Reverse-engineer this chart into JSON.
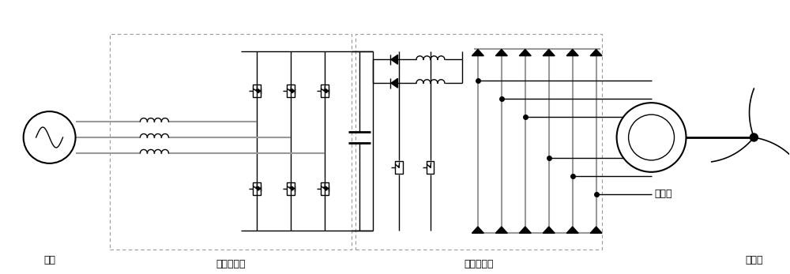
{
  "labels": {
    "grid": "电网",
    "grid_converter": "网侧变流器",
    "machine_converter": "机侧变流器",
    "generator": "发电机",
    "wind_turbine": "风轮机"
  },
  "colors": {
    "line": "#000000",
    "gray_line": "#999999",
    "dashed_box": "#999999",
    "background": "#ffffff"
  },
  "fig_width": 10.0,
  "fig_height": 3.47,
  "dpi": 100
}
